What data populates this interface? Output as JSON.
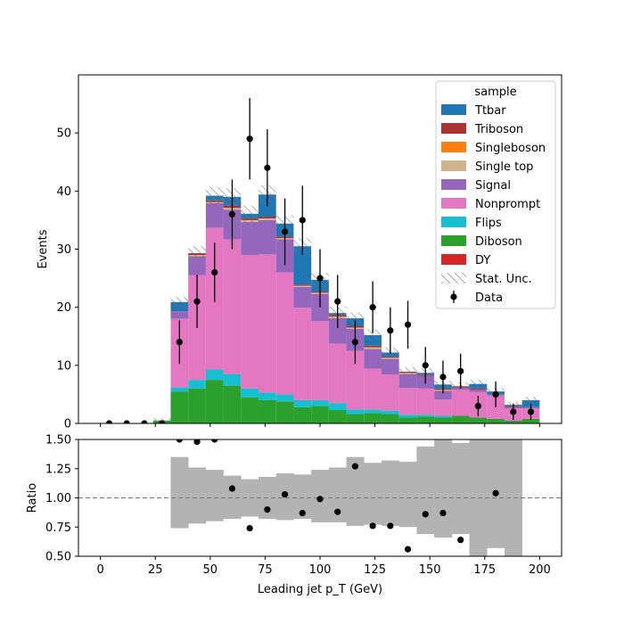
{
  "chart_data": [
    {
      "type": "stacked-step-histogram",
      "xlim": [
        -10,
        210
      ],
      "ylim": [
        0,
        60
      ],
      "ylabel": "Events",
      "y_ticks": [
        0,
        10,
        20,
        30,
        40,
        50
      ],
      "legend": {
        "title": "sample",
        "placement": "top-right",
        "entries": [
          "Ttbar",
          "Triboson",
          "Singleboson",
          "Single top",
          "Signal",
          "Nonprompt",
          "Flips",
          "Diboson",
          "DY",
          "Stat. Unc.",
          "Data"
        ]
      },
      "bins": [
        0,
        8,
        16,
        24,
        32,
        40,
        48,
        56,
        64,
        72,
        80,
        88,
        96,
        104,
        112,
        120,
        128,
        136,
        144,
        152,
        160,
        168,
        176,
        184,
        192,
        200
      ],
      "series": [
        {
          "name": "Diboson",
          "color": "#2ca02c",
          "values": [
            0,
            0,
            0,
            0.5,
            5.5,
            6,
            7.5,
            6.5,
            4.5,
            4,
            3.8,
            2.8,
            3,
            2.3,
            1.6,
            1.8,
            1.6,
            1,
            1.2,
            1,
            1.3,
            1,
            0.8,
            0.5,
            0.8
          ]
        },
        {
          "name": "Flips",
          "color": "#17becf",
          "values": [
            0,
            0,
            0,
            0,
            0.7,
            1.5,
            1.8,
            2,
            1.5,
            1.3,
            1.2,
            1.2,
            1,
            1.2,
            0.8,
            0.6,
            0.6,
            0.5,
            0.3,
            0.3,
            0,
            0,
            0,
            0,
            0
          ]
        },
        {
          "name": "Nonprompt",
          "color": "#e377c2",
          "values": [
            0,
            0,
            0,
            0,
            11.8,
            18,
            24.4,
            23.2,
            23,
            23.8,
            21,
            15.9,
            13.6,
            10.2,
            10.1,
            7,
            6.2,
            4.6,
            4.5,
            2.8,
            4.5,
            4.4,
            4,
            2.1,
            1.8
          ]
        },
        {
          "name": "Signal",
          "color": "#9467bd",
          "values": [
            0,
            0,
            0,
            0,
            1.3,
            3.3,
            4.2,
            5.1,
            5.7,
            5.9,
            5.7,
            3.6,
            4.7,
            4.4,
            3.8,
            3.4,
            2.7,
            2.4,
            2.2,
            1.5,
            0.4,
            0.4,
            0.2,
            0.2,
            0.2
          ]
        },
        {
          "name": "Single top",
          "color": "#d2b48c",
          "values": [
            0,
            0,
            0,
            0,
            0,
            0.2,
            0.2,
            0.3,
            0.3,
            0.3,
            0.2,
            0.2,
            0.2,
            0.3,
            0.2,
            0.3,
            0.2,
            0.2,
            0,
            0.2,
            0,
            0,
            0,
            0,
            0
          ]
        },
        {
          "name": "Singleboson",
          "color": "#ff7f0e",
          "values": [
            0,
            0,
            0,
            0,
            0,
            0,
            0,
            0,
            0,
            0,
            0,
            0,
            0,
            0,
            0,
            0,
            0,
            0,
            0,
            0,
            0,
            0,
            0,
            0,
            0
          ]
        },
        {
          "name": "Triboson",
          "color": "#aa3333",
          "values": [
            0,
            0,
            0,
            0,
            0,
            0.3,
            0.3,
            0.4,
            0.3,
            0.3,
            0.3,
            0.2,
            0.2,
            0.3,
            0.3,
            0.3,
            0.2,
            0.2,
            0.2,
            0.2,
            0.2,
            0.2,
            0,
            0.2,
            0
          ]
        },
        {
          "name": "DY",
          "color": "#d62728",
          "values": [
            0,
            0,
            0,
            0,
            0,
            0,
            0,
            0,
            0,
            0,
            0,
            0,
            0,
            0,
            0,
            0,
            0,
            0,
            0,
            0,
            0,
            0,
            0,
            0,
            0
          ]
        },
        {
          "name": "Ttbar",
          "color": "#1f77b4",
          "values": [
            0,
            0,
            0,
            0,
            1.6,
            0,
            0.8,
            1.5,
            0.8,
            3.8,
            2.2,
            6.6,
            2,
            0.3,
            1.3,
            1.8,
            0.7,
            0,
            0.3,
            0.7,
            0,
            0.8,
            0.5,
            0.2,
            1.2
          ]
        }
      ],
      "stat_unc": [
        0,
        0,
        0,
        0.4,
        0.9,
        1.2,
        1.5,
        1.5,
        1.4,
        1.6,
        1.4,
        1.4,
        1.2,
        1.1,
        1,
        1,
        0.9,
        0.8,
        0.8,
        0.7,
        0.7,
        0.7,
        0.6,
        0.5,
        0.6
      ],
      "data": {
        "name": "Data",
        "x": [
          4,
          12,
          20,
          28,
          36,
          44,
          52,
          60,
          68,
          76,
          84,
          92,
          100,
          108,
          116,
          124,
          132,
          140,
          148,
          156,
          164,
          172,
          180,
          188,
          196
        ],
        "y": [
          0,
          0,
          0,
          0,
          14,
          21,
          26,
          36,
          49,
          44,
          33,
          35,
          25,
          21,
          14,
          20,
          16,
          17,
          10,
          8,
          9,
          3,
          5,
          2,
          2
        ]
      }
    },
    {
      "type": "scatter",
      "xlabel": "Leading jet  p_T (GeV)",
      "ylabel": "Ratio",
      "xlim": [
        -10,
        210
      ],
      "ylim": [
        0.5,
        1.5
      ],
      "x_ticks": [
        0,
        25,
        50,
        75,
        100,
        125,
        150,
        175,
        200
      ],
      "y_ticks": [
        0.5,
        0.75,
        1.0,
        1.25,
        1.5
      ],
      "y_tick_labels": [
        "0.50",
        "0.75",
        "1.00",
        "1.25",
        "1.50"
      ],
      "reference_line": 1.0,
      "unc_band": [
        {
          "lo": 0.74,
          "hi": 1.35
        },
        {
          "lo": 0.78,
          "hi": 1.26
        },
        {
          "lo": 0.8,
          "hi": 1.24
        },
        {
          "lo": 0.82,
          "hi": 1.19
        },
        {
          "lo": 0.84,
          "hi": 1.16
        },
        {
          "lo": 0.82,
          "hi": 1.18
        },
        {
          "lo": 0.81,
          "hi": 1.21
        },
        {
          "lo": 0.82,
          "hi": 1.2
        },
        {
          "lo": 0.79,
          "hi": 1.24
        },
        {
          "lo": 0.79,
          "hi": 1.26
        },
        {
          "lo": 0.76,
          "hi": 1.35
        },
        {
          "lo": 0.77,
          "hi": 1.3
        },
        {
          "lo": 0.76,
          "hi": 1.32
        },
        {
          "lo": 0.75,
          "hi": 1.31
        },
        {
          "lo": 0.69,
          "hi": 1.44
        },
        {
          "lo": 0.66,
          "hi": 1.51
        },
        {
          "lo": 0.69,
          "hi": 1.47
        },
        {
          "lo": 0.5,
          "hi": 1.5
        },
        {
          "lo": 0.57,
          "hi": 1.5
        },
        {
          "lo": 0.5,
          "hi": 1.5
        }
      ],
      "unc_band_start": 32,
      "points": {
        "x": [
          36,
          44,
          52,
          60,
          68,
          76,
          84,
          92,
          100,
          108,
          116,
          124,
          132,
          140,
          148,
          156,
          164,
          180
        ],
        "y": [
          1.5,
          1.48,
          1.5,
          1.08,
          0.74,
          0.9,
          1.03,
          0.87,
          0.99,
          0.88,
          1.27,
          0.76,
          0.76,
          0.56,
          0.86,
          0.87,
          0.64,
          1.04
        ]
      }
    }
  ]
}
